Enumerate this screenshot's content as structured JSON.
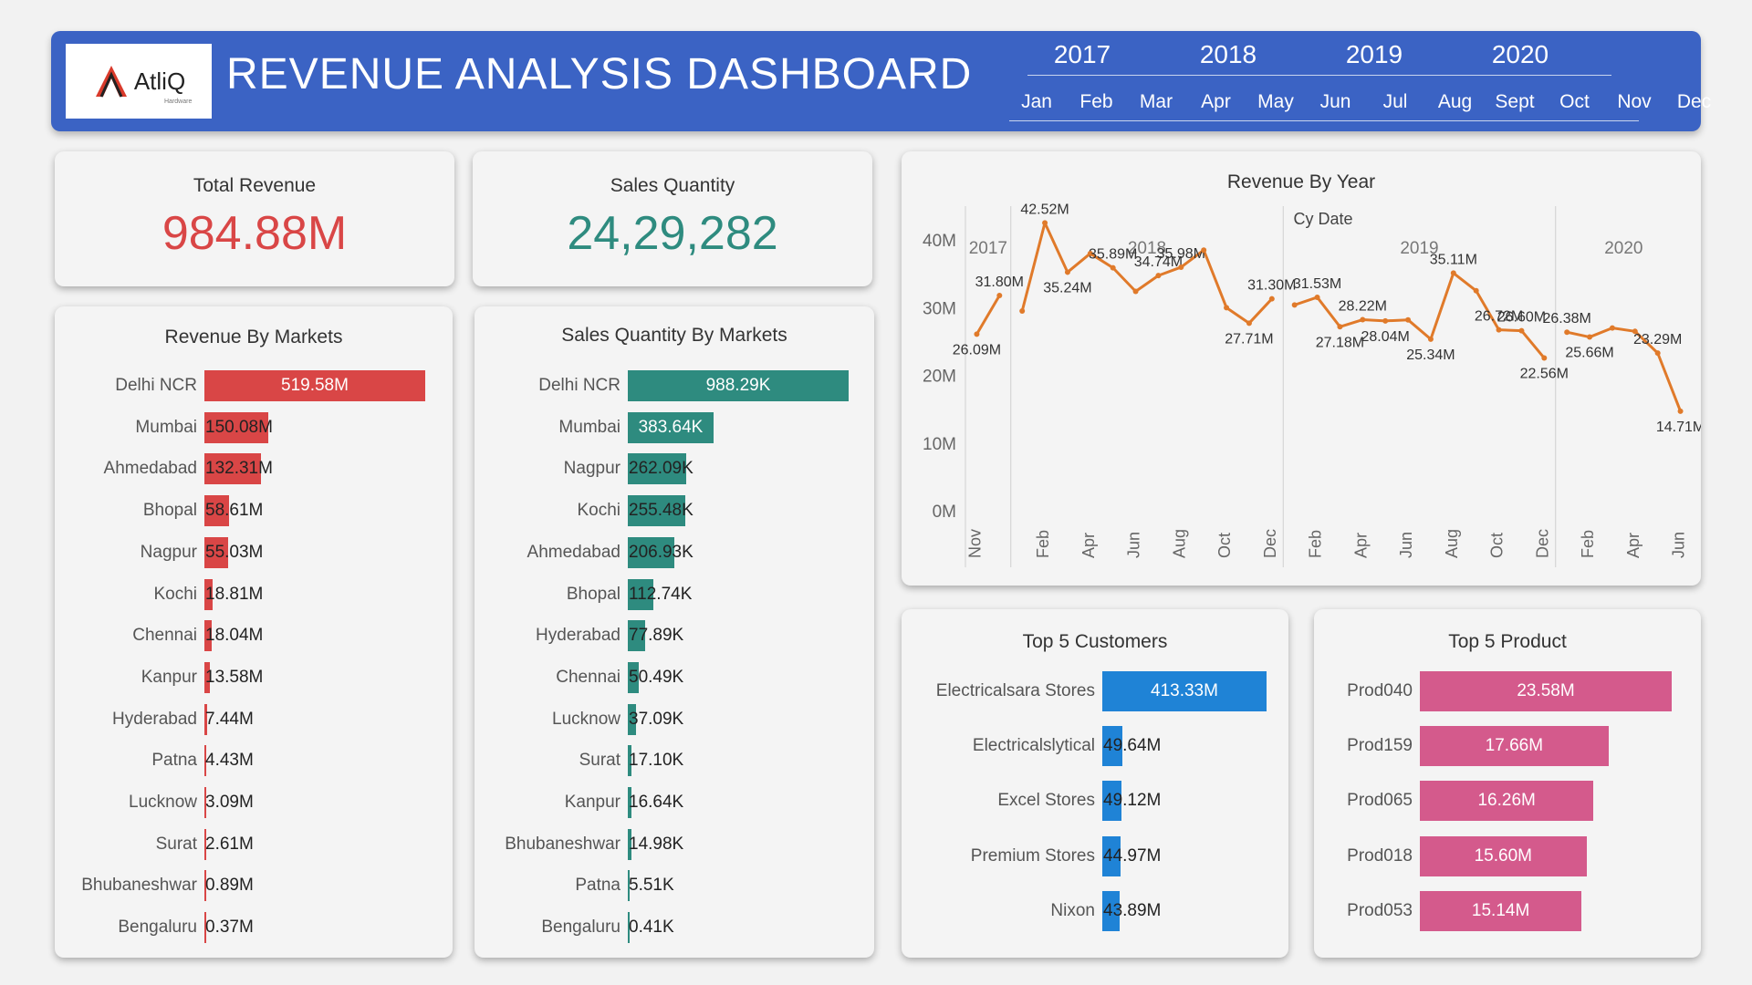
{
  "header": {
    "logo_text": "AtliQ",
    "logo_sub": "Hardware",
    "title": "REVENUE ANALYSIS DASHBOARD",
    "years": [
      "2017",
      "2018",
      "2019",
      "2020"
    ],
    "months": [
      "Jan",
      "Feb",
      "Mar",
      "Apr",
      "May",
      "Jun",
      "Jul",
      "Aug",
      "Sept",
      "Oct",
      "Nov",
      "Dec"
    ]
  },
  "kpis": {
    "revenue": {
      "title": "Total Revenue",
      "value": "984.88M"
    },
    "quantity": {
      "title": "Sales Quantity",
      "value": "24,29,282"
    }
  },
  "colors": {
    "header": "#3b63c4",
    "revenue": "#d94646",
    "quantity": "#2e8b7f",
    "customers": "#1f83d6",
    "products": "#d45a8c",
    "line": "#e07a2a"
  },
  "revenue_by_markets": {
    "title": "Revenue By Markets",
    "rows": [
      {
        "label": "Delhi NCR",
        "text": "519.58M",
        "value": 519.58
      },
      {
        "label": "Mumbai",
        "text": "150.08M",
        "value": 150.08
      },
      {
        "label": "Ahmedabad",
        "text": "132.31M",
        "value": 132.31
      },
      {
        "label": "Bhopal",
        "text": "58.61M",
        "value": 58.61
      },
      {
        "label": "Nagpur",
        "text": "55.03M",
        "value": 55.03
      },
      {
        "label": "Kochi",
        "text": "18.81M",
        "value": 18.81
      },
      {
        "label": "Chennai",
        "text": "18.04M",
        "value": 18.04
      },
      {
        "label": "Kanpur",
        "text": "13.58M",
        "value": 13.58
      },
      {
        "label": "Hyderabad",
        "text": "7.44M",
        "value": 7.44
      },
      {
        "label": "Patna",
        "text": "4.43M",
        "value": 4.43
      },
      {
        "label": "Lucknow",
        "text": "3.09M",
        "value": 3.09
      },
      {
        "label": "Surat",
        "text": "2.61M",
        "value": 2.61
      },
      {
        "label": "Bhubaneshwar",
        "text": "0.89M",
        "value": 0.89
      },
      {
        "label": "Bengaluru",
        "text": "0.37M",
        "value": 0.37
      }
    ]
  },
  "quantity_by_markets": {
    "title": "Sales Quantity By Markets",
    "rows": [
      {
        "label": "Delhi NCR",
        "text": "988.29K",
        "value": 988.29
      },
      {
        "label": "Mumbai",
        "text": "383.64K",
        "value": 383.64
      },
      {
        "label": "Nagpur",
        "text": "262.09K",
        "value": 262.09
      },
      {
        "label": "Kochi",
        "text": "255.48K",
        "value": 255.48
      },
      {
        "label": "Ahmedabad",
        "text": "206.93K",
        "value": 206.93
      },
      {
        "label": "Bhopal",
        "text": "112.74K",
        "value": 112.74
      },
      {
        "label": "Hyderabad",
        "text": "77.89K",
        "value": 77.89
      },
      {
        "label": "Chennai",
        "text": "50.49K",
        "value": 50.49
      },
      {
        "label": "Lucknow",
        "text": "37.09K",
        "value": 37.09
      },
      {
        "label": "Surat",
        "text": "17.10K",
        "value": 17.1
      },
      {
        "label": "Kanpur",
        "text": "16.64K",
        "value": 16.64
      },
      {
        "label": "Bhubaneshwar",
        "text": "14.98K",
        "value": 14.98
      },
      {
        "label": "Patna",
        "text": "5.51K",
        "value": 5.51
      },
      {
        "label": "Bengaluru",
        "text": "0.41K",
        "value": 0.41
      }
    ]
  },
  "top_customers": {
    "title": "Top 5 Customers",
    "rows": [
      {
        "label": "Electricalsara Stores",
        "text": "413.33M",
        "value": 413.33
      },
      {
        "label": "Electricalslytical",
        "text": "49.64M",
        "value": 49.64
      },
      {
        "label": "Excel Stores",
        "text": "49.12M",
        "value": 49.12
      },
      {
        "label": "Premium Stores",
        "text": "44.97M",
        "value": 44.97
      },
      {
        "label": "Nixon",
        "text": "43.89M",
        "value": 43.89
      }
    ]
  },
  "top_products": {
    "title": "Top 5 Product",
    "rows": [
      {
        "label": "Prod040",
        "text": "23.58M",
        "value": 23.58
      },
      {
        "label": "Prod159",
        "text": "17.66M",
        "value": 17.66
      },
      {
        "label": "Prod065",
        "text": "16.26M",
        "value": 16.26
      },
      {
        "label": "Prod018",
        "text": "15.60M",
        "value": 15.6
      },
      {
        "label": "Prod053",
        "text": "15.14M",
        "value": 15.14
      }
    ]
  },
  "chart_data": [
    {
      "type": "line",
      "title": "Revenue By Year",
      "xlabel": "Cy Date",
      "ylabel": "",
      "ylim": [
        0,
        45
      ],
      "y_ticks": [
        "0M",
        "10M",
        "20M",
        "30M",
        "40M"
      ],
      "y_tick_values": [
        0,
        10,
        20,
        30,
        40
      ],
      "panels": [
        {
          "year": "2017",
          "start": 0,
          "end": 2
        },
        {
          "year": "2018",
          "start": 2,
          "end": 14
        },
        {
          "year": "2019",
          "start": 14,
          "end": 26
        },
        {
          "year": "2020",
          "start": 26,
          "end": 32
        }
      ],
      "x_tick_labels": [
        "Nov",
        "Feb",
        "Apr",
        "Jun",
        "Aug",
        "Oct",
        "Dec",
        "Feb",
        "Apr",
        "Jun",
        "Aug",
        "Oct",
        "Dec",
        "Feb",
        "Apr",
        "Jun"
      ],
      "x_tick_index": [
        0.5,
        3.5,
        5.5,
        7.5,
        9.5,
        11.5,
        13.5,
        15.5,
        17.5,
        19.5,
        21.5,
        23.5,
        25.5,
        27.5,
        29.5,
        31.5
      ],
      "series": [
        {
          "values": [
            26.09,
            31.8,
            29.5,
            42.52,
            35.24,
            38.0,
            35.89,
            32.4,
            34.74,
            35.98,
            38.5,
            30.0,
            27.71,
            31.3,
            30.4,
            31.53,
            27.18,
            28.22,
            28.04,
            28.2,
            25.34,
            35.11,
            32.5,
            26.72,
            26.6,
            22.56,
            26.38,
            25.66,
            27.0,
            26.5,
            23.29,
            14.71
          ],
          "labels": [
            "26.09M",
            "31.80M",
            "",
            "42.52M",
            "35.24M",
            "",
            "35.89M",
            "",
            "34.74M",
            "35.98M",
            "",
            "",
            "27.71M",
            "31.30M",
            "",
            "31.53M",
            "27.18M",
            "28.22M",
            "28.04M",
            "",
            "25.34M",
            "35.11M",
            "",
            "26.72M",
            "26.60M",
            "22.56M",
            "26.38M",
            "25.66M",
            "",
            "",
            "23.29M",
            "14.71M"
          ]
        }
      ]
    },
    {
      "type": "bar",
      "title": "Revenue By Markets",
      "categories": [
        "Delhi NCR",
        "Mumbai",
        "Ahmedabad",
        "Bhopal",
        "Nagpur",
        "Kochi",
        "Chennai",
        "Kanpur",
        "Hyderabad",
        "Patna",
        "Lucknow",
        "Surat",
        "Bhubaneshwar",
        "Bengaluru"
      ],
      "values": [
        519.58,
        150.08,
        132.31,
        58.61,
        55.03,
        18.81,
        18.04,
        13.58,
        7.44,
        4.43,
        3.09,
        2.61,
        0.89,
        0.37
      ]
    },
    {
      "type": "bar",
      "title": "Sales Quantity By Markets",
      "categories": [
        "Delhi NCR",
        "Mumbai",
        "Nagpur",
        "Kochi",
        "Ahmedabad",
        "Bhopal",
        "Hyderabad",
        "Chennai",
        "Lucknow",
        "Surat",
        "Kanpur",
        "Bhubaneshwar",
        "Patna",
        "Bengaluru"
      ],
      "values": [
        988.29,
        383.64,
        262.09,
        255.48,
        206.93,
        112.74,
        77.89,
        50.49,
        37.09,
        17.1,
        16.64,
        14.98,
        5.51,
        0.41
      ]
    },
    {
      "type": "bar",
      "title": "Top 5 Customers",
      "categories": [
        "Electricalsara Stores",
        "Electricalslytical",
        "Excel Stores",
        "Premium Stores",
        "Nixon"
      ],
      "values": [
        413.33,
        49.64,
        49.12,
        44.97,
        43.89
      ]
    },
    {
      "type": "bar",
      "title": "Top 5 Product",
      "categories": [
        "Prod040",
        "Prod159",
        "Prod065",
        "Prod018",
        "Prod053"
      ],
      "values": [
        23.58,
        17.66,
        16.26,
        15.6,
        15.14
      ]
    }
  ]
}
